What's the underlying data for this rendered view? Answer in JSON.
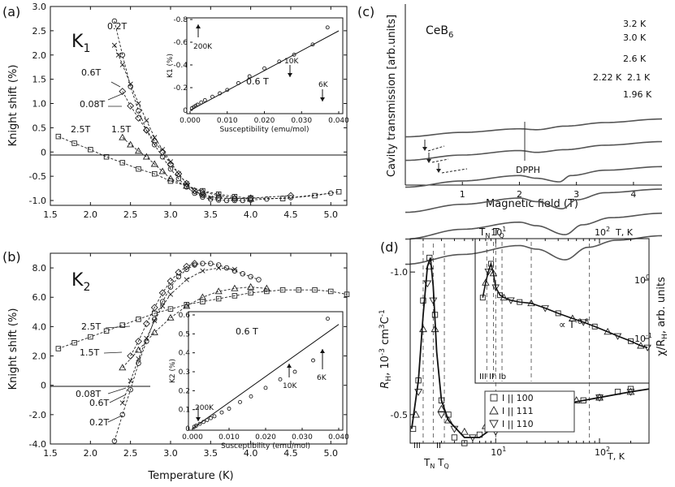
{
  "panels": {
    "a": {
      "tag": "(a)",
      "title": "K",
      "title_sub": "1",
      "xlabel": "Temperature (K)",
      "ylabel": "Knight shift (%)"
    },
    "b": {
      "tag": "(b)",
      "title": "K",
      "title_sub": "2",
      "ylabel": "Knight shift (%)"
    },
    "c": {
      "tag": "(c)",
      "material": "CeB",
      "material_sub": "6",
      "dpph": "DPPH"
    },
    "d": {
      "tag": "(d)",
      "top_axis_T": "T",
      "top_axis_TN": "T",
      "top_axis_TN_sub": "N",
      "top_axis_TQ_sub": "Q",
      "power_law": "∝ T",
      "power_exp": "-0.8",
      "phase_labels": "III II' Ib"
    }
  },
  "chart_data": [
    {
      "panel": "a",
      "type": "line",
      "title": "K1",
      "xlabel": "Temperature (K)",
      "ylabel": "Knight shift (%)",
      "xlim": [
        1.5,
        5.2
      ],
      "ylim": [
        -1.1,
        3.0
      ],
      "xticks": [
        "1.5",
        "2.0",
        "2.5",
        "3.0",
        "3.5",
        "4.0",
        "4.5",
        "5.0"
      ],
      "yticks": [
        "-1.0",
        "-0.5",
        "0",
        "0.5",
        "1.0",
        "1.5",
        "2.0",
        "2.5",
        "3.0"
      ],
      "series": [
        {
          "name": "0.2T",
          "marker": "circle",
          "x": [
            2.3,
            2.4,
            2.5,
            2.6,
            2.7,
            2.8,
            2.9,
            3.0,
            3.1,
            3.2,
            3.3,
            3.4,
            3.5,
            3.6,
            3.7,
            3.8,
            3.9,
            4.0,
            4.2,
            4.5,
            5.0
          ],
          "y": [
            2.7,
            2.0,
            1.35,
            0.85,
            0.45,
            0.15,
            -0.1,
            -0.35,
            -0.55,
            -0.72,
            -0.85,
            -0.93,
            -0.97,
            -0.99,
            -1.0,
            -1.0,
            -1.0,
            -0.99,
            -0.97,
            -0.94,
            -0.85
          ]
        },
        {
          "name": "0.6T",
          "marker": "x",
          "x": [
            2.3,
            2.35,
            2.4,
            2.5,
            2.6,
            2.7,
            2.8,
            2.9,
            3.0,
            3.1,
            3.2,
            3.3,
            3.4,
            3.5
          ],
          "y": [
            2.2,
            2.0,
            1.8,
            1.4,
            1.0,
            0.65,
            0.3,
            0.05,
            -0.2,
            -0.45,
            -0.65,
            -0.8,
            -0.9,
            -0.95
          ]
        },
        {
          "name": "0.08T",
          "marker": "diamond",
          "x": [
            2.4,
            2.5,
            2.6,
            2.7,
            2.8,
            2.9,
            3.0,
            3.1,
            3.2,
            3.3,
            3.4,
            3.6,
            3.8,
            4.0,
            4.5
          ],
          "y": [
            1.25,
            0.95,
            0.7,
            0.45,
            0.22,
            0.0,
            -0.25,
            -0.45,
            -0.65,
            -0.8,
            -0.88,
            -0.95,
            -0.96,
            -0.95,
            -0.9
          ]
        },
        {
          "name": "1.5T",
          "marker": "triangle",
          "x": [
            2.4,
            2.5,
            2.6,
            2.7,
            2.8,
            2.9,
            3.0,
            3.2,
            3.4,
            3.6,
            3.8,
            4.0
          ],
          "y": [
            0.3,
            0.15,
            0.02,
            -0.1,
            -0.25,
            -0.4,
            -0.55,
            -0.7,
            -0.82,
            -0.9,
            -0.95,
            -0.97
          ]
        },
        {
          "name": "2.5T",
          "marker": "square",
          "x": [
            1.6,
            1.8,
            2.0,
            2.2,
            2.4,
            2.6,
            2.8,
            3.0,
            3.2,
            3.4,
            3.6,
            3.8,
            4.0,
            4.4,
            4.8,
            5.1
          ],
          "y": [
            0.32,
            0.18,
            0.05,
            -0.1,
            -0.22,
            -0.35,
            -0.45,
            -0.6,
            -0.7,
            -0.8,
            -0.87,
            -0.92,
            -0.95,
            -0.96,
            -0.9,
            -0.82
          ]
        }
      ],
      "inset": {
        "type": "line",
        "title": "0.6 T",
        "xlabel": "Susceptibility (emu/mol)",
        "ylabel": "K1 (%)",
        "xlim": [
          0,
          0.04
        ],
        "ylim": [
          -0.8,
          0
        ],
        "xticks": [
          "0.000",
          "0.010",
          "0.020",
          "0.030",
          "0.040"
        ],
        "yticks": [
          "0",
          "-0.2",
          "-0.4",
          "-0.6",
          "-0.8"
        ],
        "points": {
          "x": [
            0.0005,
            0.001,
            0.0015,
            0.002,
            0.003,
            0.004,
            0.006,
            0.008,
            0.01,
            0.013,
            0.016,
            0.02,
            0.024,
            0.028,
            0.033,
            0.037
          ],
          "y": [
            -0.02,
            -0.03,
            -0.04,
            -0.05,
            -0.07,
            -0.09,
            -0.12,
            -0.15,
            -0.18,
            -0.24,
            -0.3,
            -0.37,
            -0.43,
            -0.49,
            -0.58,
            -0.73
          ]
        },
        "fit": {
          "x": [
            0,
            0.04
          ],
          "y": [
            0,
            -0.7
          ]
        },
        "annotations": [
          "200K",
          "10K",
          "6K"
        ]
      }
    },
    {
      "panel": "b",
      "type": "line",
      "title": "K2",
      "xlabel": "Temperature (K)",
      "ylabel": "Knight shift (%)",
      "xlim": [
        1.5,
        5.2
      ],
      "ylim": [
        -4.0,
        9.0
      ],
      "xticks": [
        "1.5",
        "2.0",
        "2.5",
        "3.0",
        "3.5",
        "4.0",
        "4.5",
        "5.0"
      ],
      "yticks": [
        "-4.0",
        "-2.0",
        "0",
        "2.0",
        "4.0",
        "6.0",
        "8.0"
      ],
      "series": [
        {
          "name": "0.2T",
          "marker": "circle",
          "x": [
            2.3,
            2.4,
            2.5,
            2.6,
            2.7,
            2.8,
            2.9,
            3.0,
            3.1,
            3.2,
            3.3,
            3.4,
            3.5,
            3.6,
            3.7,
            3.8,
            3.9,
            4.0,
            4.1
          ],
          "y": [
            -3.8,
            -2.0,
            -0.3,
            1.5,
            3.0,
            4.5,
            5.7,
            6.7,
            7.4,
            7.9,
            8.2,
            8.3,
            8.3,
            8.2,
            8.0,
            7.8,
            7.6,
            7.4,
            7.2
          ]
        },
        {
          "name": "0.6T",
          "marker": "x",
          "x": [
            2.4,
            2.5,
            2.6,
            2.7,
            2.8,
            2.9,
            3.0,
            3.2,
            3.4,
            3.6,
            3.8
          ],
          "y": [
            -1.2,
            0.3,
            1.8,
            3.2,
            4.4,
            5.4,
            6.2,
            7.2,
            7.8,
            8.0,
            7.9
          ]
        },
        {
          "name": "0.08T",
          "marker": "diamond",
          "x": [
            2.5,
            2.6,
            2.7,
            2.8,
            2.9,
            3.0,
            3.1,
            3.2,
            3.3
          ],
          "y": [
            2.0,
            3.0,
            4.2,
            5.3,
            6.3,
            7.1,
            7.7,
            8.1,
            8.3
          ]
        },
        {
          "name": "1.5T",
          "marker": "triangle",
          "x": [
            2.4,
            2.6,
            2.8,
            3.0,
            3.2,
            3.4,
            3.6,
            3.8,
            4.0,
            4.2
          ],
          "y": [
            1.2,
            2.4,
            3.6,
            4.6,
            5.4,
            6.0,
            6.4,
            6.6,
            6.7,
            6.6
          ]
        },
        {
          "name": "2.5T",
          "marker": "square",
          "x": [
            1.6,
            1.8,
            2.0,
            2.2,
            2.4,
            2.6,
            2.8,
            3.0,
            3.2,
            3.4,
            3.6,
            3.8,
            4.0,
            4.2,
            4.4,
            4.6,
            4.8,
            5.0,
            5.2
          ],
          "y": [
            2.5,
            2.9,
            3.3,
            3.7,
            4.1,
            4.5,
            4.9,
            5.2,
            5.5,
            5.7,
            5.9,
            6.1,
            6.3,
            6.4,
            6.5,
            6.5,
            6.5,
            6.4,
            6.2
          ]
        }
      ],
      "inset": {
        "type": "line",
        "title": "0.6 T",
        "xlabel": "Susceptibility (emu/mol)",
        "ylabel": "K2 (%)",
        "xlim": [
          0,
          0.04
        ],
        "ylim": [
          0,
          0.6
        ],
        "xticks": [
          "0.000",
          "0.010",
          "0.020",
          "0.030",
          "0.040"
        ],
        "yticks": [
          "0",
          "0.1",
          "0.2",
          "0.3",
          "0.4",
          "0.5",
          "0.6"
        ],
        "points": {
          "x": [
            0.0005,
            0.001,
            0.002,
            0.003,
            0.004,
            0.005,
            0.006,
            0.008,
            0.01,
            0.013,
            0.016,
            0.02,
            0.024,
            0.028,
            0.033,
            0.037
          ],
          "y": [
            0.01,
            0.015,
            0.025,
            0.035,
            0.045,
            0.055,
            0.065,
            0.085,
            0.105,
            0.14,
            0.17,
            0.215,
            0.26,
            0.3,
            0.36,
            0.58
          ]
        },
        "fit": {
          "x": [
            0,
            0.04
          ],
          "y": [
            0,
            0.55
          ]
        },
        "annotations": [
          "200K",
          "10K",
          "6K"
        ]
      }
    },
    {
      "panel": "c",
      "type": "line",
      "title": "CeB6",
      "xlabel": "Magnetic field (T)",
      "ylabel": "Cavity transmission [arb.units]",
      "xlim": [
        0,
        4.5
      ],
      "xticks": [
        "1",
        "2",
        "3",
        "4"
      ],
      "series": [
        {
          "name": "3.2 K",
          "x": [
            0,
            1,
            2,
            2.3,
            2.8,
            3.5,
            4.5
          ],
          "y": [
            1.5,
            1.75,
            1.95,
            1.9,
            2.1,
            2.3,
            2.5
          ]
        },
        {
          "name": "3.0 K",
          "x": [
            0,
            1,
            2,
            2.3,
            2.8,
            3.5,
            4.5
          ],
          "y": [
            1.0,
            1.3,
            1.55,
            1.45,
            1.6,
            1.85,
            2.05
          ]
        },
        {
          "name": "2.6 K",
          "x": [
            0,
            1,
            2,
            2.3,
            2.7,
            2.9,
            3.5,
            4.5
          ],
          "y": [
            0.5,
            0.85,
            1.15,
            1.0,
            0.8,
            1.15,
            1.45,
            1.65
          ]
        },
        {
          "name": "2.22 K",
          "x": [
            0,
            1,
            2,
            2.3,
            2.75,
            3.0,
            3.5,
            4.5
          ],
          "y": [
            0.0,
            0.45,
            0.8,
            0.6,
            0.2,
            0.7,
            1.1,
            1.3
          ]
        },
        {
          "name": "2.1 K",
          "x": [
            0,
            1,
            2,
            2.3,
            2.8,
            3.1,
            3.6,
            4.5
          ],
          "y": [
            -0.5,
            0.05,
            0.45,
            0.25,
            -0.25,
            0.3,
            0.7,
            0.95
          ]
        },
        {
          "name": "1.96 K",
          "x": [
            0,
            1,
            2,
            2.3,
            2.8,
            3.2,
            3.7,
            4.5
          ],
          "y": [
            -1.0,
            -0.45,
            0.05,
            -0.15,
            -0.75,
            -0.05,
            0.35,
            0.6
          ]
        }
      ]
    },
    {
      "panel": "d",
      "type": "scatter",
      "xlabel": "T, K",
      "ylabel": "R_H, 10^-3 cm^3C^-1",
      "x_scale": "log",
      "xlim": [
        1.5,
        300
      ],
      "ylim": [
        -0.4,
        -1.1
      ],
      "xticks": [
        "10^1",
        "10^2"
      ],
      "yticks": [
        "-1.0",
        "-0.5"
      ],
      "series": [
        {
          "name": "I || 100",
          "marker": "square",
          "x": [
            1.6,
            1.8,
            2.0,
            2.3,
            2.6,
            3,
            3.5,
            4,
            5,
            7,
            10,
            20,
            40,
            70,
            100,
            150,
            200
          ],
          "y": [
            -0.45,
            -0.62,
            -0.9,
            -1.05,
            -0.85,
            -0.55,
            -0.5,
            -0.42,
            -0.4,
            -0.43,
            -0.47,
            -0.52,
            -0.55,
            -0.55,
            -0.56,
            -0.58,
            -0.59
          ]
        },
        {
          "name": "I || 111",
          "marker": "triangle",
          "x": [
            1.7,
            2.0,
            2.3,
            2.6,
            3.0,
            3.5,
            5,
            8,
            15,
            30,
            60,
            100,
            200
          ],
          "y": [
            -0.5,
            -0.8,
            -1.02,
            -0.8,
            -0.52,
            -0.48,
            -0.44,
            -0.46,
            -0.5,
            -0.53,
            -0.55,
            -0.56,
            -0.58
          ]
        },
        {
          "name": "I || 110",
          "marker": "triangle-down",
          "x": [
            1.8,
            2.2,
            2.5,
            3,
            4,
            6,
            10,
            20,
            50,
            100,
            200
          ],
          "y": [
            -0.58,
            -0.96,
            -0.9,
            -0.5,
            -0.45,
            -0.42,
            -0.44,
            -0.5,
            -0.54,
            -0.56,
            -0.58
          ]
        }
      ],
      "inset": {
        "type": "scatter",
        "ylabel": "χ/R_H, arb. units",
        "x_scale": "log",
        "y_scale": "log",
        "xlim": [
          1.5,
          300
        ],
        "xticks": [
          "10^1",
          "10^2"
        ],
        "yticks": [
          "10^0",
          "10^-1"
        ],
        "annotation": "∝ T^-0.8"
      },
      "annotations": [
        "T_N",
        "T_Q",
        "III",
        "II",
        "III",
        "II'",
        "Ib"
      ]
    }
  ]
}
